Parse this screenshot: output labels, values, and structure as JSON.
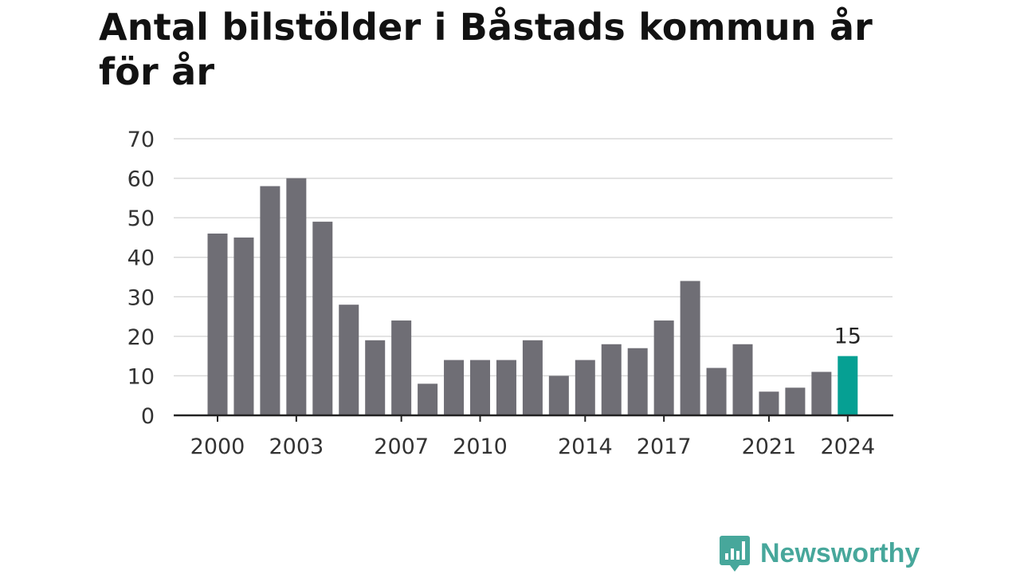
{
  "chart_data": {
    "type": "bar",
    "title": "Antal bilstölder i Båstads kommun år för år",
    "xlabel": "",
    "ylabel": "",
    "x": [
      2000,
      2001,
      2002,
      2003,
      2004,
      2005,
      2006,
      2007,
      2008,
      2009,
      2010,
      2011,
      2012,
      2013,
      2014,
      2015,
      2016,
      2017,
      2018,
      2019,
      2020,
      2021,
      2022,
      2023,
      2024
    ],
    "values": [
      46,
      45,
      58,
      60,
      49,
      28,
      19,
      24,
      8,
      14,
      14,
      14,
      19,
      10,
      14,
      18,
      17,
      24,
      34,
      12,
      18,
      6,
      7,
      11,
      15
    ],
    "x_tick_labels": [
      "2000",
      "2003",
      "2007",
      "2010",
      "2014",
      "2017",
      "2021",
      "2024"
    ],
    "y_ticks": [
      0,
      10,
      20,
      30,
      40,
      50,
      60,
      70
    ],
    "ylim": [
      0,
      70
    ],
    "grid": true,
    "highlight": {
      "year": 2024,
      "label": "15"
    },
    "colors": {
      "bar": "#6f6e75",
      "highlight": "#06a093",
      "grid": "#d9d9d9",
      "axis": "#222222",
      "text": "#333333"
    }
  },
  "branding": {
    "logo_text": "Newsworthy",
    "logo_icon": "bar-chart-badge-icon",
    "color": "#47a79b"
  }
}
